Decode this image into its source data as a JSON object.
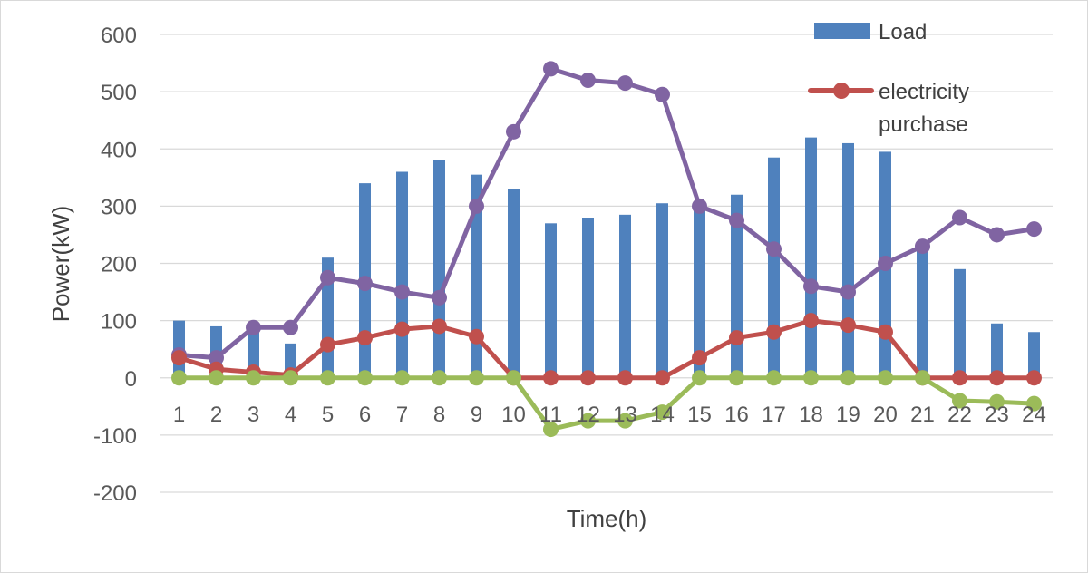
{
  "chart_data": {
    "type": "bar+line",
    "title": "",
    "xlabel": "Time(h)",
    "ylabel": "Power(kW)",
    "ylim": [
      -200,
      600
    ],
    "yticks": [
      -200,
      -100,
      0,
      100,
      200,
      300,
      400,
      500,
      600
    ],
    "grid": true,
    "legend_position": "top-right",
    "categories": [
      "1",
      "2",
      "3",
      "4",
      "5",
      "6",
      "7",
      "8",
      "9",
      "10",
      "11",
      "12",
      "13",
      "14",
      "15",
      "16",
      "17",
      "18",
      "19",
      "20",
      "21",
      "22",
      "23",
      "24"
    ],
    "series": [
      {
        "name": "Load",
        "type": "bar",
        "color": "#4f81bd",
        "show_in_legend": true,
        "values": [
          100,
          90,
          85,
          60,
          210,
          340,
          360,
          380,
          355,
          330,
          270,
          280,
          285,
          305,
          300,
          320,
          385,
          420,
          410,
          395,
          230,
          190,
          95,
          80
        ]
      },
      {
        "name": "electricity purchase",
        "type": "line",
        "color": "#c0504d",
        "show_in_legend": true,
        "values": [
          35,
          15,
          10,
          5,
          58,
          70,
          85,
          90,
          72,
          0,
          0,
          0,
          0,
          0,
          35,
          70,
          80,
          100,
          92,
          80,
          0,
          0,
          0,
          0
        ]
      },
      {
        "name": "",
        "type": "line",
        "color": "#8064a2",
        "show_in_legend": false,
        "values": [
          40,
          35,
          88,
          88,
          175,
          165,
          150,
          140,
          300,
          430,
          540,
          520,
          515,
          495,
          300,
          275,
          225,
          160,
          150,
          200,
          230,
          280,
          250,
          260
        ]
      },
      {
        "name": "",
        "type": "line",
        "color": "#9bbb59",
        "show_in_legend": false,
        "values": [
          0,
          0,
          0,
          0,
          0,
          0,
          0,
          0,
          0,
          0,
          -90,
          -75,
          -75,
          -60,
          0,
          0,
          0,
          0,
          0,
          0,
          0,
          -40,
          -42,
          -45
        ]
      }
    ],
    "legend": {
      "load_label": "Load",
      "purchase_label_line1": "electricity",
      "purchase_label_line2": "purchase"
    }
  }
}
